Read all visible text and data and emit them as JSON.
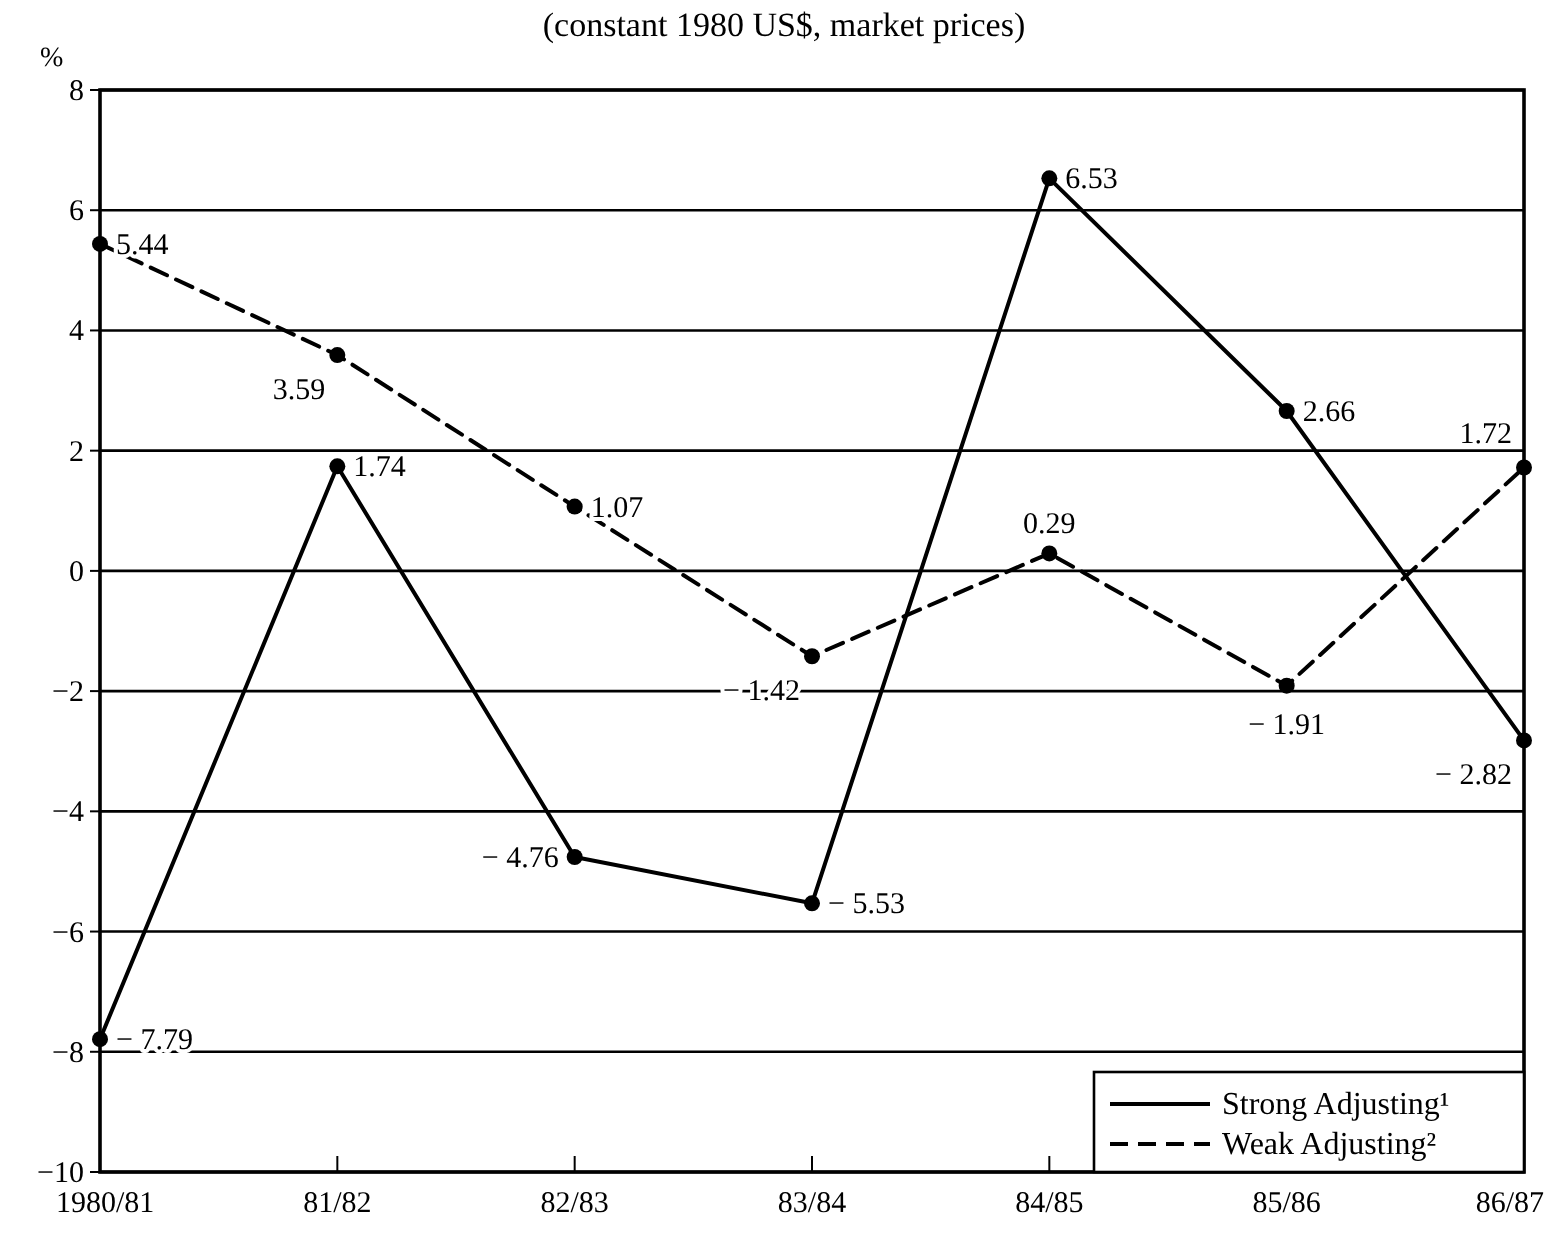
{
  "chart_data": {
    "type": "line",
    "subtitle": "(constant 1980 US$, market prices)",
    "ylabel": "%",
    "categories": [
      "1980/81",
      "81/82",
      "82/83",
      "83/84",
      "84/85",
      "85/86",
      "86/87"
    ],
    "series": [
      {
        "name": "Strong Adjusting¹",
        "color": "#000000",
        "line_style": "solid",
        "values": [
          -7.79,
          1.74,
          -4.76,
          -5.53,
          6.53,
          2.66,
          -2.82
        ]
      },
      {
        "name": "Weak Adjusting²",
        "color": "#000000",
        "line_style": "dashed",
        "values": [
          5.44,
          3.59,
          1.07,
          -1.42,
          0.29,
          -1.91,
          1.72
        ]
      }
    ],
    "ylim": [
      -10,
      8
    ],
    "yticks": [
      -10,
      -8,
      -6,
      -4,
      -2,
      0,
      2,
      4,
      6,
      8
    ],
    "grid": "y",
    "legend": "bottom right",
    "marker": "circle",
    "data_labels": true
  }
}
